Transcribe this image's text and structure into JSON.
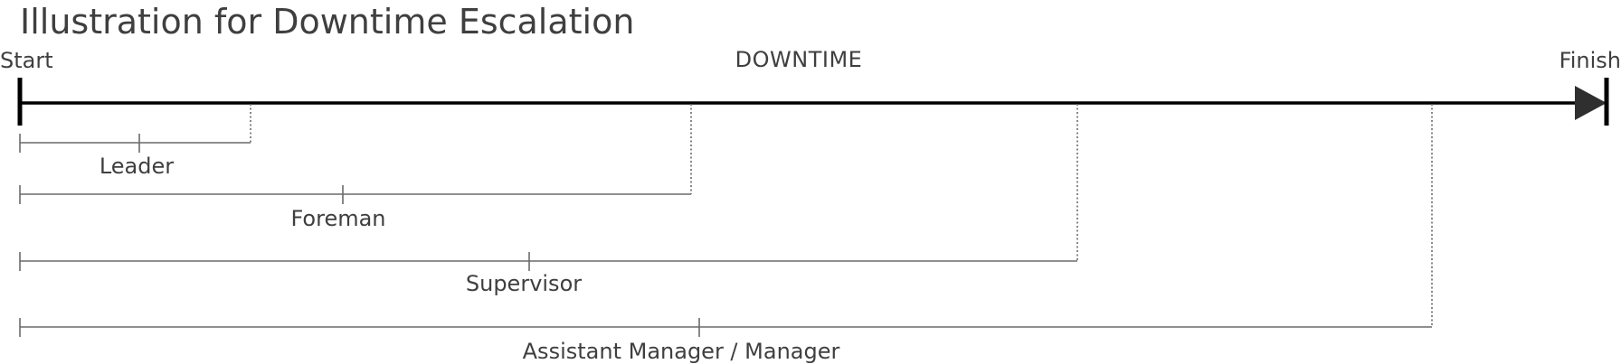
{
  "title": "Illustration for Downtime Escalation",
  "timeline": {
    "start_label": "Start",
    "finish_label": "Finish",
    "center_label": "DOWNTIME"
  },
  "roles": [
    {
      "label": "Leader"
    },
    {
      "label": "Foreman"
    },
    {
      "label": "Supervisor"
    },
    {
      "label": "Assistant Manager / Manager"
    }
  ],
  "colors": {
    "main_line": "#000000",
    "arrow_head": "#2f2f2f",
    "role_lines": "#6a6a6a",
    "text": "#3f3f3f"
  }
}
